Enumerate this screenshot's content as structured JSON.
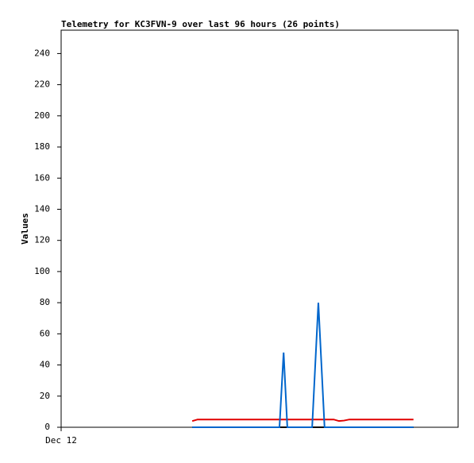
{
  "chart_data": {
    "type": "line",
    "title": "Telemetry for KC3FVN-9 over last 96 hours (26 points)",
    "y_label": "Values",
    "x": [
      31.7,
      33.0,
      36.1,
      39.9,
      43.8,
      47.6,
      51.5,
      52.8,
      53.8,
      54.7,
      57.2,
      60.7,
      62.2,
      63.7,
      65.9,
      67.2,
      68.4,
      69.7,
      71.6,
      73.5,
      75.5,
      77.4,
      79.3,
      81.2,
      83.1,
      85.2
    ],
    "xlim": [
      0,
      96
    ],
    "xticks": [
      {
        "value": 0,
        "label": "Dec 12"
      }
    ],
    "ylim": [
      0,
      255
    ],
    "yticks": [
      0,
      20,
      40,
      60,
      80,
      100,
      120,
      140,
      160,
      180,
      200,
      220,
      240
    ],
    "series": [
      {
        "color": "#000000",
        "values": [
          0,
          0,
          0,
          0,
          0,
          0,
          0,
          0,
          0,
          0,
          0,
          0,
          0,
          0,
          0,
          0,
          0,
          0,
          0,
          0,
          0,
          0,
          0,
          0,
          0,
          0
        ]
      },
      {
        "color": "#e00000",
        "values": [
          4,
          5,
          5,
          5,
          5,
          5,
          5,
          5,
          5,
          5,
          5,
          5,
          5,
          5,
          5,
          4,
          4.3,
          5,
          5,
          5,
          5,
          5,
          5,
          5,
          5,
          5
        ]
      },
      {
        "color": "#0066cc",
        "values": [
          0,
          0,
          0,
          0,
          0,
          0,
          0,
          0,
          48,
          0,
          0,
          0,
          80,
          0,
          0,
          0,
          0,
          0,
          0,
          0,
          0,
          0,
          0,
          0,
          0,
          0
        ]
      }
    ]
  }
}
